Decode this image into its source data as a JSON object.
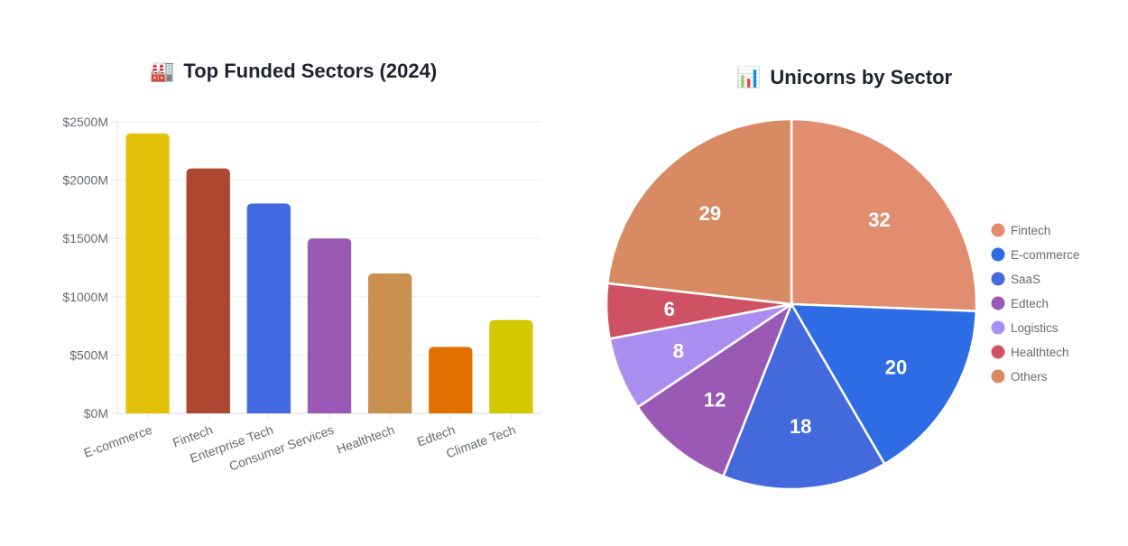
{
  "charts": {
    "funded": {
      "title_emoji": "🏭",
      "title": "Top Funded Sectors (2024)"
    },
    "unicorns": {
      "title_emoji": "📊",
      "title": "Unicorns by Sector"
    }
  },
  "chart_data": [
    {
      "type": "bar",
      "title": "Top Funded Sectors (2024)",
      "categories": [
        "E-commerce",
        "Fintech",
        "Enterprise Tech",
        "Consumer Services",
        "Healthtech",
        "Edtech",
        "Climate Tech"
      ],
      "values": [
        2400,
        2100,
        1800,
        1500,
        1200,
        570,
        800
      ],
      "colors": [
        "#e5c20a",
        "#ad4732",
        "#4169e1",
        "#9b59b6",
        "#c9904f",
        "#e07000",
        "#d4c800"
      ],
      "ylim": [
        0,
        2500
      ],
      "yticks": [
        0,
        500,
        1000,
        1500,
        2000,
        2500
      ],
      "ytick_labels": [
        "$0M",
        "$500M",
        "$1000M",
        "$1500M",
        "$2000M",
        "$2500M"
      ],
      "grid": true,
      "legend": "none"
    },
    {
      "type": "pie",
      "title": "Unicorns by Sector",
      "labels": [
        "Fintech",
        "E-commerce",
        "SaaS",
        "Edtech",
        "Logistics",
        "Healthtech",
        "Others"
      ],
      "values": [
        32,
        20,
        18,
        12,
        8,
        6,
        29
      ],
      "colors": [
        "#e28c70",
        "#2e6ce6",
        "#4469dd",
        "#9b59b6",
        "#ab8ff0",
        "#cf5264",
        "#d88b62"
      ],
      "legend": "right"
    }
  ]
}
